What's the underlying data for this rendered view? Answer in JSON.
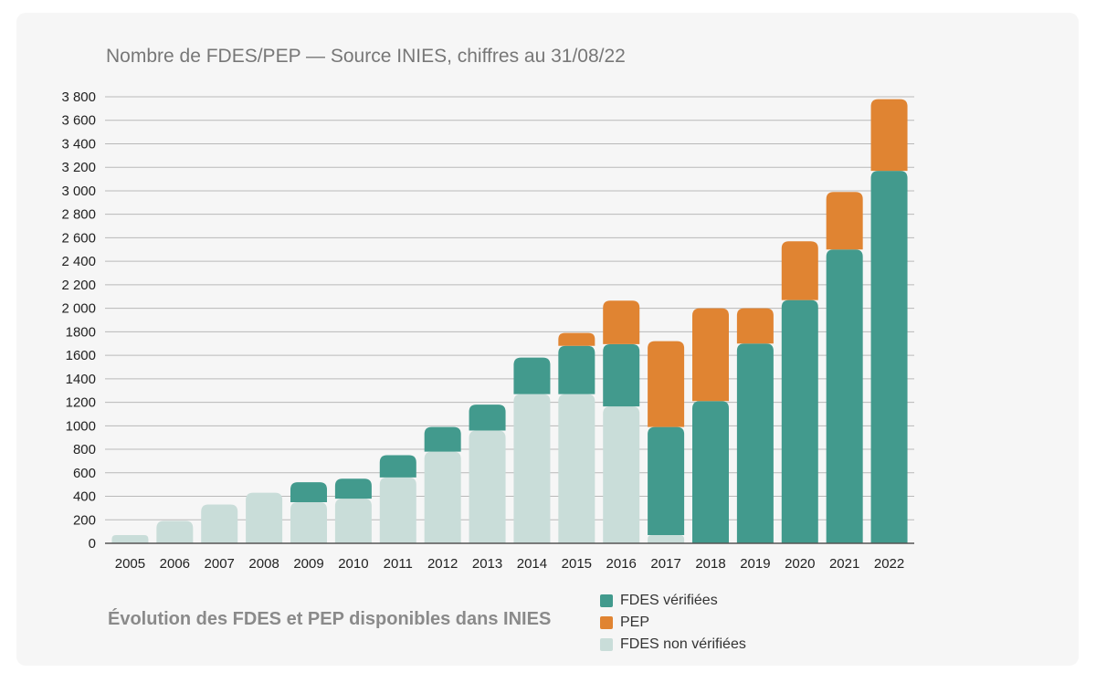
{
  "chart_data": {
    "type": "bar",
    "stacked": true,
    "title": "Nombre de FDES/PEP — Source INIES, chiffres au 31/08/22",
    "caption": "Évolution des FDES et PEP disponibles dans INIES",
    "categories": [
      "2005",
      "2006",
      "2007",
      "2008",
      "2009",
      "2010",
      "2011",
      "2012",
      "2013",
      "2014",
      "2015",
      "2016",
      "2017",
      "2018",
      "2019",
      "2020",
      "2021",
      "2022"
    ],
    "series": [
      {
        "name": "FDES non vérifiées",
        "color": "#c9ddd9",
        "values": [
          70,
          190,
          330,
          430,
          350,
          380,
          560,
          780,
          960,
          1270,
          1270,
          1165,
          70,
          0,
          0,
          0,
          0,
          0
        ]
      },
      {
        "name": "FDES vérifiées",
        "color": "#429a8d",
        "values": [
          0,
          0,
          0,
          0,
          170,
          170,
          190,
          210,
          220,
          310,
          410,
          530,
          920,
          1210,
          1700,
          2070,
          2500,
          3170
        ]
      },
      {
        "name": "PEP",
        "color": "#e08432",
        "values": [
          0,
          0,
          0,
          0,
          0,
          0,
          0,
          0,
          0,
          0,
          110,
          370,
          730,
          790,
          300,
          500,
          490,
          610
        ]
      }
    ],
    "ylim": [
      0,
      3800
    ],
    "yticks": [
      0,
      200,
      400,
      600,
      800,
      1000,
      1200,
      1400,
      1600,
      1800,
      2000,
      2200,
      2400,
      2600,
      2800,
      3000,
      3200,
      3400,
      3600,
      3800
    ],
    "ytick_labels": [
      "0",
      "200",
      "400",
      "600",
      "800",
      "1000",
      "1200",
      "1400",
      "1600",
      "1800",
      "2 000",
      "2 200",
      "2 400",
      "2 600",
      "2 800",
      "3 000",
      "3 200",
      "3 400",
      "3 600",
      "3 800"
    ],
    "grid": true,
    "legend": "bottom-right",
    "legend_order": [
      "FDES vérifiées",
      "PEP",
      "FDES non vérifiées"
    ]
  }
}
